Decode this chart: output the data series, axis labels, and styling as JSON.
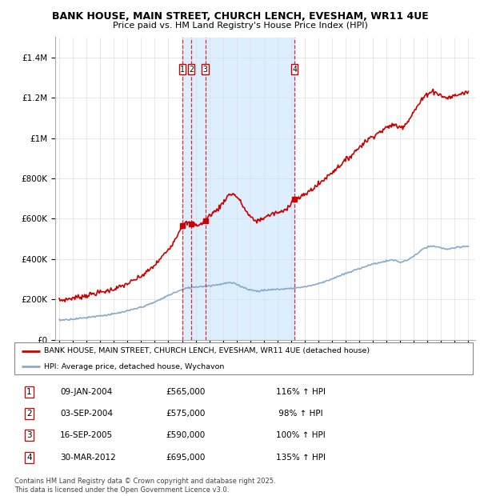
{
  "title_line1": "BANK HOUSE, MAIN STREET, CHURCH LENCH, EVESHAM, WR11 4UE",
  "title_line2": "Price paid vs. HM Land Registry's House Price Index (HPI)",
  "ylim": [
    0,
    1500000
  ],
  "yticks": [
    0,
    200000,
    400000,
    600000,
    800000,
    1000000,
    1200000,
    1400000
  ],
  "ytick_labels": [
    "£0",
    "£200K",
    "£400K",
    "£600K",
    "£800K",
    "£1M",
    "£1.2M",
    "£1.4M"
  ],
  "xlim_start": 1994.7,
  "xlim_end": 2025.5,
  "sale_dates_decimal": [
    2004.03,
    2004.67,
    2005.71,
    2012.24
  ],
  "sale_prices": [
    565000,
    575000,
    590000,
    695000
  ],
  "sale_labels": [
    "1",
    "2",
    "3",
    "4"
  ],
  "sale_date_str": [
    "09-JAN-2004",
    "03-SEP-2004",
    "16-SEP-2005",
    "30-MAR-2012"
  ],
  "sale_pct": [
    "116%",
    "98%",
    "100%",
    "135%"
  ],
  "shade_start": 2004.03,
  "shade_end": 2012.24,
  "line_color_house": "#cc0000",
  "line_color_hpi": "#88aacc",
  "shade_color": "#ddeeff",
  "legend_label_house": "BANK HOUSE, MAIN STREET, CHURCH LENCH, EVESHAM, WR11 4UE (detached house)",
  "legend_label_hpi": "HPI: Average price, detached house, Wychavon",
  "footer": "Contains HM Land Registry data © Crown copyright and database right 2025.\nThis data is licensed under the Open Government Licence v3.0.",
  "house_years": [
    1995,
    1995.5,
    1996,
    1996.5,
    1997,
    1997.5,
    1998,
    1998.5,
    1999,
    1999.5,
    2000,
    2000.5,
    2001,
    2001.5,
    2002,
    2002.5,
    2003,
    2003.5,
    2004.03,
    2004.67,
    2005.71,
    2006,
    2006.5,
    2007,
    2007.5,
    2008,
    2008.5,
    2009,
    2009.5,
    2010,
    2010.5,
    2011,
    2011.5,
    2012.24,
    2012.5,
    2013,
    2013.5,
    2014,
    2014.5,
    2015,
    2015.5,
    2016,
    2016.5,
    2017,
    2017.5,
    2018,
    2018.5,
    2019,
    2019.5,
    2020,
    2020.5,
    2021,
    2021.5,
    2022,
    2022.5,
    2023,
    2023.5,
    2024,
    2024.5,
    2025
  ],
  "house_vals": [
    195000,
    200000,
    207000,
    213000,
    220000,
    228000,
    235000,
    242000,
    252000,
    263000,
    278000,
    295000,
    315000,
    340000,
    370000,
    408000,
    450000,
    500000,
    565000,
    575000,
    590000,
    615000,
    640000,
    680000,
    720000,
    710000,
    660000,
    610000,
    590000,
    605000,
    620000,
    630000,
    640000,
    695000,
    700000,
    720000,
    745000,
    770000,
    800000,
    830000,
    860000,
    890000,
    920000,
    955000,
    985000,
    1010000,
    1030000,
    1050000,
    1065000,
    1055000,
    1080000,
    1130000,
    1180000,
    1220000,
    1230000,
    1210000,
    1200000,
    1210000,
    1220000,
    1230000
  ],
  "hpi_years": [
    1995,
    1995.5,
    1996,
    1996.5,
    1997,
    1997.5,
    1998,
    1998.5,
    1999,
    1999.5,
    2000,
    2000.5,
    2001,
    2001.5,
    2002,
    2002.5,
    2003,
    2003.5,
    2004,
    2004.5,
    2005,
    2005.5,
    2006,
    2006.5,
    2007,
    2007.5,
    2008,
    2008.5,
    2009,
    2009.5,
    2010,
    2010.5,
    2011,
    2011.5,
    2012,
    2012.5,
    2013,
    2013.5,
    2014,
    2014.5,
    2015,
    2015.5,
    2016,
    2016.5,
    2017,
    2017.5,
    2018,
    2018.5,
    2019,
    2019.5,
    2020,
    2020.5,
    2021,
    2021.5,
    2022,
    2022.5,
    2023,
    2023.5,
    2024,
    2024.5,
    2025
  ],
  "hpi_vals": [
    98000,
    100000,
    103000,
    106000,
    110000,
    115000,
    119000,
    123000,
    128000,
    135000,
    143000,
    152000,
    162000,
    173000,
    187000,
    203000,
    220000,
    235000,
    248000,
    258000,
    262000,
    265000,
    268000,
    272000,
    278000,
    282000,
    275000,
    260000,
    248000,
    242000,
    245000,
    248000,
    250000,
    252000,
    255000,
    258000,
    263000,
    270000,
    278000,
    290000,
    302000,
    315000,
    328000,
    340000,
    353000,
    365000,
    375000,
    383000,
    390000,
    395000,
    385000,
    395000,
    415000,
    440000,
    460000,
    462000,
    455000,
    450000,
    455000,
    460000,
    465000
  ]
}
